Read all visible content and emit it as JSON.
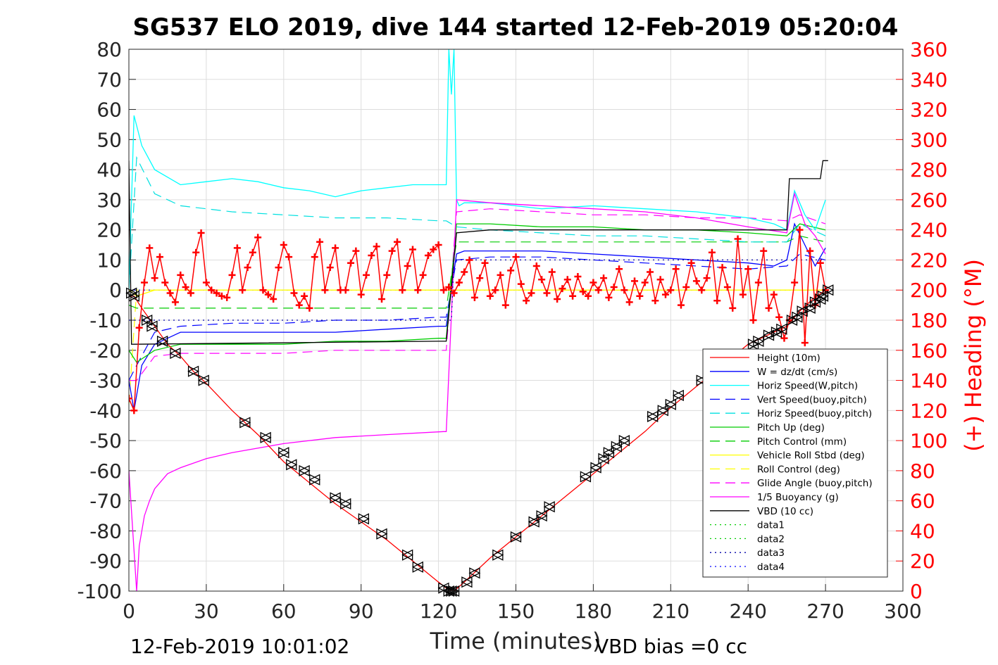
{
  "chart_data": {
    "type": "line",
    "title": "SG537 ELO 2019, dive 144 started 12-Feb-2019 05:20:04",
    "xlabel": "Time (minutes)",
    "ylabel": "",
    "y2label": "(+) Heading (°M)",
    "xlim": [
      0,
      300
    ],
    "ylim": [
      -100,
      80
    ],
    "y2lim": [
      0,
      360
    ],
    "xticks": [
      "0",
      "30",
      "60",
      "90",
      "120",
      "150",
      "180",
      "210",
      "240",
      "270",
      "300"
    ],
    "yticks": [
      "80",
      "70",
      "60",
      "50",
      "40",
      "30",
      "20",
      "10",
      "0",
      "-10",
      "-20",
      "-30",
      "-40",
      "-50",
      "-60",
      "-70",
      "-80",
      "-90",
      "-100"
    ],
    "y2ticks": [
      "360",
      "340",
      "320",
      "300",
      "280",
      "260",
      "240",
      "220",
      "200",
      "180",
      "160",
      "140",
      "120",
      "100",
      "80",
      "60",
      "40",
      "20",
      "0"
    ],
    "grid": true,
    "legend_position": "bottom-right",
    "footer_left": "12-Feb-2019 10:01:02",
    "footer_right": "VBD bias =0 cc",
    "colors": {
      "right_axis": "#ff0000"
    },
    "series": [
      {
        "name": "Height (10m)",
        "color": "#ff0000",
        "style": "solid",
        "x": [
          0,
          2,
          5,
          10,
          15,
          20,
          25,
          30,
          40,
          50,
          60,
          70,
          80,
          90,
          100,
          110,
          120,
          123,
          126,
          130,
          140,
          150,
          160,
          170,
          180,
          190,
          200,
          210,
          220,
          230,
          240,
          250,
          255,
          260,
          265,
          270
        ],
        "y": [
          -2,
          -2,
          -6,
          -12,
          -18,
          -22,
          -27,
          -31,
          -40,
          -48,
          -57,
          -64,
          -71,
          -77,
          -83,
          -90,
          -97,
          -99,
          -100,
          -97,
          -89,
          -82,
          -75,
          -68,
          -61,
          -54,
          -47,
          -39,
          -32,
          -25,
          -18,
          -14,
          -12,
          -7,
          -3,
          0
        ]
      },
      {
        "name": "W = dz/dt (cm/s)",
        "color": "#0000ff",
        "style": "solid",
        "x": [
          0,
          2,
          5,
          10,
          20,
          40,
          60,
          80,
          100,
          120,
          123,
          127,
          130,
          140,
          160,
          180,
          200,
          220,
          240,
          250,
          255,
          258,
          262,
          266,
          270
        ],
        "y": [
          -30,
          -40,
          -25,
          -18,
          -14,
          -14,
          -14,
          -14,
          -13,
          -12,
          -12,
          12,
          13,
          13,
          13,
          12,
          11,
          10,
          9,
          8,
          10,
          22,
          15,
          8,
          14
        ]
      },
      {
        "name": "Horiz Speed(W,pitch)",
        "color": "#00ffff",
        "style": "solid",
        "x": [
          0,
          2,
          5,
          10,
          20,
          30,
          40,
          50,
          60,
          70,
          80,
          90,
          100,
          110,
          120,
          123,
          124,
          125,
          126,
          127,
          128,
          130,
          140,
          160,
          180,
          200,
          220,
          240,
          250,
          255,
          258,
          262,
          266,
          270
        ],
        "y": [
          0,
          58,
          48,
          40,
          35,
          36,
          37,
          36,
          34,
          33,
          31,
          33,
          34,
          35,
          35,
          35,
          80,
          65,
          80,
          30,
          28,
          29,
          29,
          27,
          28,
          27,
          26,
          24,
          22,
          20,
          33,
          25,
          20,
          30
        ]
      },
      {
        "name": "Vert Speed(buoy,pitch)",
        "color": "#0000ff",
        "style": "dashed",
        "x": [
          0,
          3,
          10,
          20,
          40,
          60,
          80,
          100,
          120,
          123,
          127,
          140,
          160,
          180,
          200,
          220,
          240,
          255,
          260,
          270
        ],
        "y": [
          -30,
          -25,
          -14,
          -12,
          -11,
          -11,
          -10,
          -10,
          -9,
          -9,
          10,
          11,
          11,
          10,
          9,
          8,
          7,
          8,
          12,
          10
        ]
      },
      {
        "name": "Horiz Speed(buoy,pitch)",
        "color": "#00e0e0",
        "style": "dashed",
        "x": [
          0,
          3,
          10,
          20,
          40,
          60,
          80,
          100,
          120,
          123,
          127,
          140,
          160,
          180,
          200,
          220,
          240,
          255,
          260,
          270
        ],
        "y": [
          0,
          44,
          32,
          28,
          26,
          25,
          24,
          24,
          23,
          23,
          21,
          20,
          19,
          18,
          18,
          17,
          16,
          16,
          22,
          18
        ]
      },
      {
        "name": "Pitch Up (deg)",
        "color": "#00cc00",
        "style": "solid",
        "x": [
          0,
          3,
          10,
          20,
          40,
          60,
          80,
          100,
          120,
          123,
          127,
          140,
          160,
          180,
          200,
          220,
          240,
          255,
          260,
          270
        ],
        "y": [
          -20,
          -24,
          -20,
          -18,
          -18,
          -18,
          -17,
          -17,
          -16,
          -16,
          22,
          22,
          21,
          21,
          20,
          20,
          19,
          18,
          22,
          20
        ]
      },
      {
        "name": "Pitch Control (mm)",
        "color": "#00cc00",
        "style": "dashed",
        "x": [
          0,
          3,
          10,
          20,
          40,
          60,
          80,
          100,
          120,
          123,
          127,
          140,
          160,
          180,
          200,
          220,
          240,
          255,
          260,
          270
        ],
        "y": [
          -5,
          -6,
          -6,
          -6,
          -6,
          -6,
          -6,
          -6,
          -6,
          -6,
          16,
          16,
          16,
          16,
          16,
          16,
          16,
          16,
          18,
          16
        ]
      },
      {
        "name": "Vehicle Roll Stbd (deg)",
        "color": "#ffff00",
        "style": "solid",
        "x": [
          0,
          3,
          10,
          20,
          40,
          60,
          80,
          100,
          120,
          123,
          127,
          140,
          160,
          180,
          200,
          220,
          240,
          255,
          260,
          270
        ],
        "y": [
          0,
          -2,
          0,
          0,
          0,
          0,
          0,
          0,
          0,
          0,
          0,
          0,
          0,
          0,
          0,
          0,
          0,
          0,
          0,
          0
        ]
      },
      {
        "name": "Roll Control (deg)",
        "color": "#ffff00",
        "style": "dashed",
        "x": [
          0,
          3,
          10,
          20,
          40,
          60,
          80,
          100,
          120,
          123,
          127,
          140,
          160,
          180,
          200,
          220,
          240,
          255,
          260,
          270
        ],
        "y": [
          -38,
          0,
          0,
          0,
          0,
          0,
          0,
          0,
          0,
          0,
          0,
          0,
          0,
          0,
          0,
          0,
          0,
          0,
          0,
          0
        ]
      },
      {
        "name": "Glide Angle (buoy,pitch)",
        "color": "#ff00ff",
        "style": "dashed",
        "x": [
          0,
          3,
          10,
          20,
          40,
          60,
          80,
          100,
          120,
          123,
          127,
          140,
          160,
          180,
          200,
          220,
          240,
          255,
          260,
          270
        ],
        "y": [
          -30,
          -30,
          -22,
          -21,
          -21,
          -21,
          -20,
          -20,
          -20,
          -20,
          26,
          27,
          26,
          25,
          25,
          24,
          24,
          23,
          25,
          22
        ]
      },
      {
        "name": "1/5 Buoyancy (g)",
        "color": "#ff00ff",
        "style": "solid",
        "x": [
          0,
          3,
          4,
          6,
          8,
          10,
          15,
          20,
          30,
          40,
          60,
          80,
          100,
          122,
          123,
          127,
          140,
          160,
          180,
          200,
          220,
          240,
          255,
          258,
          262,
          266,
          270
        ],
        "y": [
          -60,
          -100,
          -85,
          -75,
          -70,
          -66,
          -61,
          -59,
          -56,
          -54,
          -51,
          -49,
          -48,
          -47,
          -47,
          30,
          29,
          28,
          27,
          26,
          24,
          21,
          19,
          32,
          22,
          18,
          12
        ]
      },
      {
        "name": "VBD (10 cc)",
        "color": "#000000",
        "style": "solid",
        "x": [
          0,
          1,
          2,
          120,
          123,
          127,
          140,
          230,
          235,
          255,
          256,
          263,
          264,
          268,
          269,
          271
        ],
        "y": [
          43,
          -18,
          -18,
          -17,
          -17,
          19,
          20,
          20,
          20,
          20,
          37,
          37,
          37,
          37,
          43,
          43
        ]
      },
      {
        "name": "data1",
        "color": "#00cc00",
        "style": "dotted",
        "x": [],
        "y": []
      },
      {
        "name": "data2",
        "color": "#00cc00",
        "style": "dotted",
        "x": [],
        "y": []
      },
      {
        "name": "data3",
        "color": "#0000aa",
        "style": "dotted",
        "x": [
          0,
          125,
          126,
          270
        ],
        "y": [
          -10,
          -10,
          10,
          10
        ]
      },
      {
        "name": "data4",
        "color": "#0000ff",
        "style": "dotted",
        "x": [
          0,
          270
        ],
        "y": [
          0,
          0
        ]
      }
    ],
    "heading_series": {
      "axis": "right",
      "color": "#ff0000",
      "marker": "+",
      "x": [
        0,
        2,
        4,
        6,
        8,
        10,
        12,
        14,
        16,
        18,
        20,
        22,
        24,
        26,
        28,
        30,
        32,
        34,
        36,
        38,
        40,
        42,
        44,
        46,
        48,
        50,
        52,
        54,
        56,
        58,
        60,
        62,
        64,
        66,
        68,
        70,
        72,
        74,
        76,
        78,
        80,
        82,
        84,
        86,
        88,
        90,
        92,
        94,
        96,
        98,
        100,
        102,
        104,
        106,
        108,
        110,
        112,
        114,
        116,
        118,
        120,
        122,
        124,
        126,
        128,
        130,
        132,
        134,
        136,
        138,
        140,
        142,
        144,
        146,
        148,
        150,
        152,
        154,
        156,
        158,
        160,
        162,
        164,
        166,
        168,
        170,
        172,
        174,
        176,
        178,
        180,
        182,
        184,
        186,
        188,
        190,
        192,
        194,
        196,
        198,
        200,
        202,
        204,
        206,
        208,
        210,
        212,
        214,
        216,
        218,
        220,
        222,
        224,
        226,
        228,
        230,
        232,
        234,
        236,
        238,
        240,
        242,
        244,
        246,
        248,
        250,
        252,
        254,
        256,
        258,
        260,
        262,
        264,
        266,
        268,
        270
      ],
      "y": [
        128,
        120,
        175,
        205,
        228,
        208,
        222,
        205,
        198,
        192,
        210,
        202,
        198,
        225,
        238,
        205,
        200,
        198,
        196,
        195,
        210,
        228,
        200,
        215,
        225,
        235,
        200,
        197,
        194,
        215,
        230,
        222,
        198,
        190,
        196,
        188,
        222,
        232,
        200,
        215,
        228,
        200,
        200,
        218,
        226,
        197,
        210,
        223,
        229,
        194,
        210,
        226,
        232,
        200,
        216,
        227,
        200,
        210,
        223,
        227,
        230,
        200,
        202,
        198,
        205,
        212,
        220,
        195,
        208,
        218,
        196,
        200,
        210,
        190,
        213,
        222,
        204,
        193,
        198,
        216,
        207,
        198,
        212,
        194,
        201,
        207,
        196,
        209,
        199,
        196,
        205,
        200,
        208,
        195,
        202,
        214,
        200,
        192,
        206,
        196,
        205,
        212,
        193,
        207,
        197,
        200,
        214,
        190,
        202,
        218,
        206,
        200,
        208,
        225,
        193,
        215,
        202,
        188,
        234,
        197,
        214,
        180,
        205,
        226,
        188,
        197,
        182,
        168,
        180,
        205,
        240,
        165,
        226,
        190,
        218,
        200
      ]
    },
    "track_markers": {
      "marker": "triangle-pair",
      "x": [
        1,
        2,
        7,
        9,
        13,
        18,
        25,
        29,
        45,
        53,
        60,
        63,
        68,
        72,
        80,
        84,
        91,
        98,
        108,
        112,
        122,
        124,
        125,
        126,
        131,
        134,
        143,
        150,
        157,
        160,
        163,
        177,
        181,
        184,
        186,
        189,
        192,
        203,
        207,
        210,
        213,
        222,
        242,
        244,
        248,
        251,
        253,
        257,
        259,
        261,
        264,
        266,
        268,
        269,
        271
      ],
      "y": [
        -1,
        -2,
        -10,
        -12,
        -17,
        -21,
        -27,
        -30,
        -44,
        -49,
        -54,
        -58,
        -60,
        -63,
        -69,
        -71,
        -76,
        -81,
        -88,
        -92,
        -99,
        -100,
        -100,
        -100,
        -97,
        -94,
        -88,
        -82,
        -77,
        -75,
        -72,
        -62,
        -59,
        -56,
        -54,
        -52,
        -50,
        -42,
        -40,
        -38,
        -35,
        -30,
        -18,
        -17,
        -15,
        -14,
        -13,
        -10,
        -9,
        -7,
        -6,
        -4,
        -3,
        -2,
        0
      ]
    }
  }
}
